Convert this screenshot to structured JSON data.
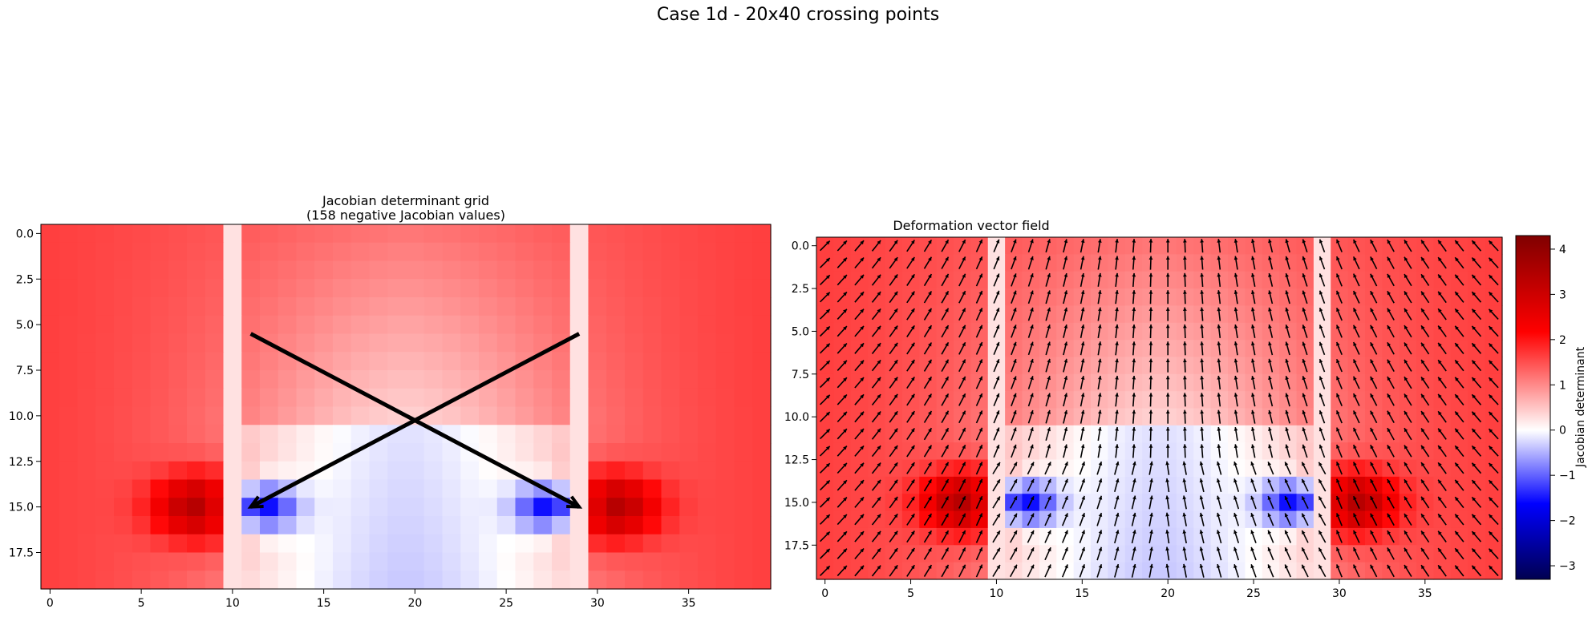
{
  "figure": {
    "suptitle": "Case 1d - 20x40 crossing points"
  },
  "chart_data": [
    {
      "type": "heatmap",
      "title_line1": "Jacobian determinant grid",
      "title_line2": "(158 negative Jacobian values)",
      "grid_shape": [
        20,
        40
      ],
      "xlim": [
        -0.5,
        39.5
      ],
      "ylim": [
        19.5,
        -0.5
      ],
      "xticks": [
        0,
        5,
        10,
        15,
        20,
        25,
        30,
        35
      ],
      "xtick_labels": [
        "0",
        "5",
        "10",
        "15",
        "20",
        "25",
        "30",
        "35"
      ],
      "yticks": [
        0,
        2.5,
        5,
        7.5,
        10,
        12.5,
        15,
        17.5
      ],
      "ytick_labels": [
        "0.0",
        "2.5",
        "5.0",
        "7.5",
        "10.0",
        "12.5",
        "15.0",
        "17.5"
      ],
      "colormap": "seismic",
      "vmin": -3.3,
      "vmax": 4.3,
      "negative_count": 158,
      "crossing_lines": [
        {
          "from": [
            11,
            5.5
          ],
          "to": [
            29,
            15
          ]
        },
        {
          "from": [
            29,
            5.5
          ],
          "to": [
            11,
            15
          ]
        }
      ],
      "line_color": "#000000"
    },
    {
      "type": "heatmap",
      "title": "Deformation vector field",
      "grid_shape": [
        20,
        40
      ],
      "xlim": [
        -0.5,
        39.5
      ],
      "ylim": [
        19.5,
        -0.5
      ],
      "xticks": [
        0,
        5,
        10,
        15,
        20,
        25,
        30,
        35
      ],
      "xtick_labels": [
        "0",
        "5",
        "10",
        "15",
        "20",
        "25",
        "30",
        "35"
      ],
      "yticks": [
        0,
        2.5,
        5,
        7.5,
        10,
        12.5,
        15,
        17.5
      ],
      "ytick_labels": [
        "0.0",
        "2.5",
        "5.0",
        "7.5",
        "10.0",
        "12.5",
        "15.0",
        "17.5"
      ],
      "colormap": "seismic",
      "vmin": -3.3,
      "vmax": 4.3,
      "overlay": "quiver",
      "colorbar": {
        "label": "Jacobian determinant",
        "ticks": [
          -3,
          -2,
          -1,
          0,
          1,
          2,
          3,
          4
        ],
        "tick_labels": [
          "−3",
          "−2",
          "−1",
          "0",
          "1",
          "2",
          "3",
          "4"
        ]
      }
    }
  ],
  "colors": {
    "dark_red": "#800000",
    "red": "#ff0000",
    "white": "#ffffff",
    "blue": "#0000ff",
    "navy": "#000050"
  }
}
